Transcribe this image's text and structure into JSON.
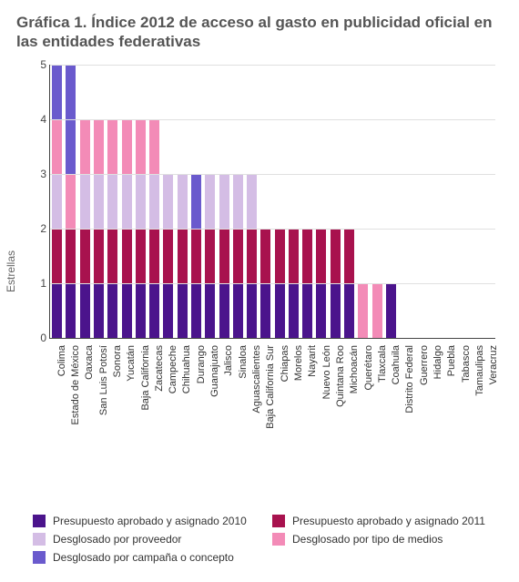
{
  "title": "Gráfica 1. Índice 2012 de acceso al gasto en publicidad oficial en las entidades federativas",
  "ylabel": "Estrellas",
  "chart": {
    "type": "bar-stacked",
    "ylim": [
      0,
      5
    ],
    "ytick_step": 1,
    "yticks": [
      0,
      1,
      2,
      3,
      4,
      5
    ],
    "grid_color": "#e0e0e0",
    "axis_color": "#444444",
    "background_color": "#ffffff",
    "title_fontsize": 17,
    "title_color": "#555555",
    "label_fontsize": 12,
    "tick_fontsize": 11,
    "bar_width": 0.72,
    "series": [
      {
        "key": "s1",
        "label": "Presupuesto aprobado y asignado 2010",
        "color": "#4b148c"
      },
      {
        "key": "s2",
        "label": "Presupuesto aprobado y asignado 2011",
        "color": "#a8124e"
      },
      {
        "key": "s3",
        "label": "Desglosado por proveedor",
        "color": "#d4bde5"
      },
      {
        "key": "s4",
        "label": "Desglosado por tipo de medios",
        "color": "#f38bb7"
      },
      {
        "key": "s5",
        "label": "Desglosado por campaña o concepto",
        "color": "#6a5acd"
      }
    ],
    "legend_layout": [
      [
        "s1",
        "s2"
      ],
      [
        "s3",
        "s4"
      ],
      [
        "s5"
      ]
    ],
    "categories": [
      "Colima",
      "Estado de México",
      "Oaxaca",
      "San Luis Potosí",
      "Sonora",
      "Yucatán",
      "Baja California",
      "Zacatecas",
      "Campeche",
      "Chihuahua",
      "Durango",
      "Guanajuato",
      "Jalisco",
      "Sinaloa",
      "Aguascalientes",
      "Baja California Sur",
      "Chiapas",
      "Morelos",
      "Nayarit",
      "Nuevo León",
      "Quintana Roo",
      "Michoacán",
      "Querétaro",
      "Tlaxcala",
      "Coahuila",
      "Distrito Federal",
      "Guerrero",
      "Hidalgo",
      "Puebla",
      "Tabasco",
      "Tamaulipas",
      "Veracruz"
    ],
    "data": {
      "s1": [
        1,
        1,
        1,
        1,
        1,
        1,
        1,
        1,
        1,
        1,
        1,
        1,
        1,
        1,
        1,
        1,
        1,
        1,
        1,
        1,
        1,
        1,
        0,
        0,
        1,
        0,
        0,
        0,
        0,
        0,
        0,
        0
      ],
      "s2": [
        1,
        1,
        1,
        1,
        1,
        1,
        1,
        1,
        1,
        1,
        1,
        1,
        1,
        1,
        1,
        1,
        1,
        1,
        1,
        1,
        1,
        1,
        0,
        0,
        0,
        0,
        0,
        0,
        0,
        0,
        0,
        0
      ],
      "s3": [
        1,
        0,
        1,
        1,
        1,
        1,
        1,
        1,
        1,
        1,
        0,
        1,
        1,
        1,
        1,
        0,
        0,
        0,
        0,
        0,
        0,
        0,
        0,
        0,
        0,
        0,
        0,
        0,
        0,
        0,
        0,
        0
      ],
      "s4": [
        1,
        1,
        1,
        1,
        1,
        1,
        1,
        1,
        0,
        0,
        0,
        0,
        0,
        0,
        0,
        0,
        0,
        0,
        0,
        0,
        0,
        0,
        1,
        1,
        0,
        0,
        0,
        0,
        0,
        0,
        0,
        0
      ],
      "s5": [
        1,
        2,
        0,
        0,
        0,
        0,
        0,
        0,
        0,
        0,
        1,
        0,
        0,
        0,
        0,
        0,
        0,
        0,
        0,
        0,
        0,
        0,
        0,
        0,
        0,
        0,
        0,
        0,
        0,
        0,
        0,
        0
      ]
    }
  }
}
